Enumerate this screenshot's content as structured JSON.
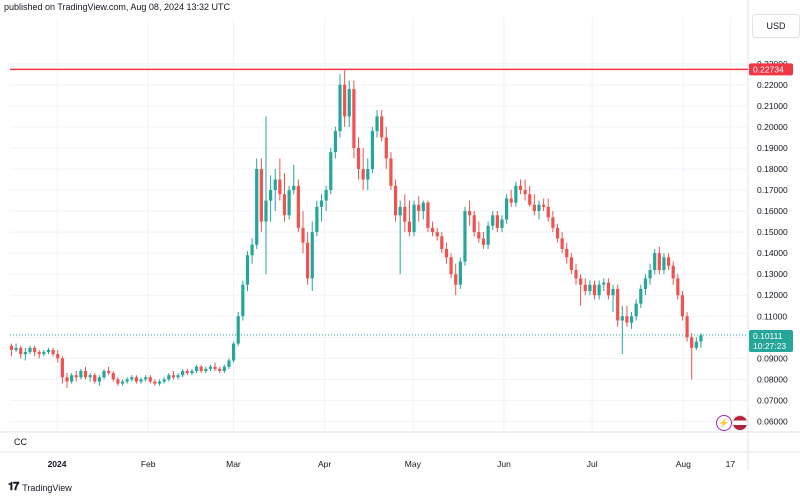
{
  "header": {
    "published": "published on TradingView.com, Aug 08, 2024 13:32 UTC"
  },
  "scale": {
    "currency": "USD"
  },
  "symbol_label": "CC",
  "footer": {
    "logo_text": "TradingView"
  },
  "icons": {
    "flash": "lightning-icon",
    "flag": "us-flag-icon"
  },
  "colors": {
    "up": "#26a69a",
    "down": "#ef5350",
    "line": "#f23645",
    "last_price_bg": "#26a69a"
  },
  "chart_data": {
    "type": "candlestick",
    "ylim": [
      0.055,
      0.2375
    ],
    "y_ticks": [
      "0.06000",
      "0.07000",
      "0.08000",
      "0.09000",
      "0.10000",
      "0.11000",
      "0.12000",
      "0.13000",
      "0.14000",
      "0.15000",
      "0.16000",
      "0.17000",
      "0.18000",
      "0.19000",
      "0.20000",
      "0.21000",
      "0.22000",
      "0.23000"
    ],
    "x_ticks": [
      {
        "label": "2024",
        "day": 0
      },
      {
        "label": "Feb",
        "day": 31
      },
      {
        "label": "Mar",
        "day": 60
      },
      {
        "label": "Apr",
        "day": 91
      },
      {
        "label": "May",
        "day": 121
      },
      {
        "label": "Jun",
        "day": 152
      },
      {
        "label": "Jul",
        "day": 182
      },
      {
        "label": "Aug",
        "day": 213
      },
      {
        "label": "17",
        "day": 229
      }
    ],
    "x_range_days": [
      -16,
      235
    ],
    "horizontal_line": {
      "value": 0.22734,
      "label": "0.22734"
    },
    "last_price": {
      "value": 0.10111,
      "label": "0.10111",
      "countdown": "10:27:23"
    },
    "ohlc": [
      [
        0.096,
        0.097,
        0.091,
        0.094
      ],
      [
        0.094,
        0.097,
        0.093,
        0.095
      ],
      [
        0.095,
        0.096,
        0.09,
        0.092
      ],
      [
        0.092,
        0.095,
        0.089,
        0.093
      ],
      [
        0.093,
        0.096,
        0.092,
        0.095
      ],
      [
        0.095,
        0.096,
        0.091,
        0.093
      ],
      [
        0.093,
        0.094,
        0.09,
        0.092
      ],
      [
        0.092,
        0.094,
        0.091,
        0.093
      ],
      [
        0.093,
        0.095,
        0.092,
        0.094
      ],
      [
        0.094,
        0.095,
        0.091,
        0.092
      ],
      [
        0.092,
        0.094,
        0.088,
        0.09
      ],
      [
        0.09,
        0.091,
        0.078,
        0.081
      ],
      [
        0.081,
        0.083,
        0.076,
        0.079
      ],
      [
        0.079,
        0.083,
        0.078,
        0.082
      ],
      [
        0.082,
        0.084,
        0.079,
        0.081
      ],
      [
        0.081,
        0.085,
        0.08,
        0.084
      ],
      [
        0.084,
        0.086,
        0.08,
        0.081
      ],
      [
        0.081,
        0.083,
        0.079,
        0.082
      ],
      [
        0.082,
        0.083,
        0.078,
        0.079
      ],
      [
        0.079,
        0.082,
        0.077,
        0.081
      ],
      [
        0.081,
        0.085,
        0.08,
        0.084
      ],
      [
        0.084,
        0.086,
        0.082,
        0.083
      ],
      [
        0.083,
        0.084,
        0.079,
        0.08
      ],
      [
        0.08,
        0.081,
        0.077,
        0.078
      ],
      [
        0.078,
        0.08,
        0.077,
        0.079
      ],
      [
        0.079,
        0.081,
        0.078,
        0.08
      ],
      [
        0.08,
        0.082,
        0.079,
        0.081
      ],
      [
        0.081,
        0.082,
        0.078,
        0.079
      ],
      [
        0.079,
        0.081,
        0.078,
        0.08
      ],
      [
        0.08,
        0.082,
        0.079,
        0.081
      ],
      [
        0.081,
        0.082,
        0.078,
        0.079
      ],
      [
        0.079,
        0.08,
        0.077,
        0.078
      ],
      [
        0.078,
        0.08,
        0.077,
        0.079
      ],
      [
        0.079,
        0.081,
        0.078,
        0.08
      ],
      [
        0.08,
        0.083,
        0.079,
        0.082
      ],
      [
        0.082,
        0.084,
        0.08,
        0.081
      ],
      [
        0.081,
        0.083,
        0.08,
        0.082
      ],
      [
        0.082,
        0.085,
        0.081,
        0.084
      ],
      [
        0.084,
        0.085,
        0.082,
        0.083
      ],
      [
        0.083,
        0.085,
        0.082,
        0.084
      ],
      [
        0.084,
        0.087,
        0.083,
        0.086
      ],
      [
        0.086,
        0.087,
        0.083,
        0.084
      ],
      [
        0.084,
        0.086,
        0.083,
        0.085
      ],
      [
        0.085,
        0.087,
        0.084,
        0.086
      ],
      [
        0.086,
        0.088,
        0.084,
        0.085
      ],
      [
        0.085,
        0.086,
        0.083,
        0.084
      ],
      [
        0.084,
        0.087,
        0.083,
        0.086
      ],
      [
        0.086,
        0.09,
        0.085,
        0.089
      ],
      [
        0.089,
        0.098,
        0.088,
        0.097
      ],
      [
        0.097,
        0.112,
        0.096,
        0.11
      ],
      [
        0.11,
        0.127,
        0.108,
        0.125
      ],
      [
        0.125,
        0.141,
        0.122,
        0.139
      ],
      [
        0.139,
        0.147,
        0.135,
        0.144
      ],
      [
        0.144,
        0.185,
        0.142,
        0.18
      ],
      [
        0.18,
        0.185,
        0.15,
        0.155
      ],
      [
        0.155,
        0.205,
        0.13,
        0.165
      ],
      [
        0.165,
        0.177,
        0.155,
        0.17
      ],
      [
        0.17,
        0.18,
        0.16,
        0.175
      ],
      [
        0.175,
        0.185,
        0.165,
        0.168
      ],
      [
        0.168,
        0.178,
        0.155,
        0.158
      ],
      [
        0.158,
        0.172,
        0.156,
        0.17
      ],
      [
        0.17,
        0.182,
        0.168,
        0.172
      ],
      [
        0.172,
        0.175,
        0.15,
        0.152
      ],
      [
        0.152,
        0.16,
        0.14,
        0.145
      ],
      [
        0.145,
        0.15,
        0.125,
        0.128
      ],
      [
        0.128,
        0.155,
        0.122,
        0.15
      ],
      [
        0.15,
        0.165,
        0.148,
        0.162
      ],
      [
        0.162,
        0.168,
        0.155,
        0.165
      ],
      [
        0.165,
        0.172,
        0.16,
        0.17
      ],
      [
        0.17,
        0.19,
        0.168,
        0.188
      ],
      [
        0.188,
        0.2,
        0.185,
        0.198
      ],
      [
        0.198,
        0.225,
        0.195,
        0.22
      ],
      [
        0.22,
        0.227,
        0.2,
        0.205
      ],
      [
        0.205,
        0.222,
        0.2,
        0.218
      ],
      [
        0.218,
        0.222,
        0.185,
        0.19
      ],
      [
        0.19,
        0.195,
        0.175,
        0.18
      ],
      [
        0.18,
        0.19,
        0.17,
        0.175
      ],
      [
        0.175,
        0.185,
        0.17,
        0.18
      ],
      [
        0.18,
        0.2,
        0.178,
        0.198
      ],
      [
        0.198,
        0.208,
        0.195,
        0.205
      ],
      [
        0.205,
        0.208,
        0.193,
        0.195
      ],
      [
        0.195,
        0.2,
        0.18,
        0.185
      ],
      [
        0.185,
        0.188,
        0.17,
        0.172
      ],
      [
        0.172,
        0.175,
        0.155,
        0.158
      ],
      [
        0.158,
        0.165,
        0.13,
        0.162
      ],
      [
        0.162,
        0.168,
        0.15,
        0.155
      ],
      [
        0.155,
        0.165,
        0.148,
        0.15
      ],
      [
        0.15,
        0.165,
        0.148,
        0.163
      ],
      [
        0.163,
        0.167,
        0.155,
        0.16
      ],
      [
        0.16,
        0.165,
        0.156,
        0.164
      ],
      [
        0.164,
        0.165,
        0.15,
        0.152
      ],
      [
        0.152,
        0.155,
        0.148,
        0.15
      ],
      [
        0.15,
        0.152,
        0.146,
        0.148
      ],
      [
        0.148,
        0.15,
        0.14,
        0.142
      ],
      [
        0.142,
        0.145,
        0.135,
        0.138
      ],
      [
        0.138,
        0.14,
        0.128,
        0.13
      ],
      [
        0.13,
        0.135,
        0.12,
        0.125
      ],
      [
        0.125,
        0.138,
        0.123,
        0.136
      ],
      [
        0.136,
        0.162,
        0.134,
        0.16
      ],
      [
        0.16,
        0.165,
        0.153,
        0.158
      ],
      [
        0.158,
        0.16,
        0.148,
        0.15
      ],
      [
        0.15,
        0.155,
        0.145,
        0.147
      ],
      [
        0.147,
        0.15,
        0.142,
        0.144
      ],
      [
        0.144,
        0.155,
        0.142,
        0.153
      ],
      [
        0.153,
        0.16,
        0.151,
        0.158
      ],
      [
        0.158,
        0.16,
        0.15,
        0.152
      ],
      [
        0.152,
        0.158,
        0.15,
        0.156
      ],
      [
        0.156,
        0.168,
        0.154,
        0.166
      ],
      [
        0.166,
        0.17,
        0.162,
        0.164
      ],
      [
        0.164,
        0.174,
        0.162,
        0.172
      ],
      [
        0.172,
        0.175,
        0.168,
        0.17
      ],
      [
        0.17,
        0.175,
        0.165,
        0.168
      ],
      [
        0.168,
        0.172,
        0.162,
        0.163
      ],
      [
        0.163,
        0.168,
        0.158,
        0.16
      ],
      [
        0.16,
        0.165,
        0.156,
        0.163
      ],
      [
        0.163,
        0.166,
        0.16,
        0.162
      ],
      [
        0.162,
        0.166,
        0.155,
        0.157
      ],
      [
        0.157,
        0.16,
        0.15,
        0.152
      ],
      [
        0.152,
        0.154,
        0.145,
        0.147
      ],
      [
        0.147,
        0.15,
        0.14,
        0.142
      ],
      [
        0.142,
        0.145,
        0.135,
        0.138
      ],
      [
        0.138,
        0.14,
        0.13,
        0.132
      ],
      [
        0.132,
        0.135,
        0.125,
        0.128
      ],
      [
        0.128,
        0.13,
        0.115,
        0.125
      ],
      [
        0.125,
        0.128,
        0.12,
        0.122
      ],
      [
        0.122,
        0.127,
        0.12,
        0.125
      ],
      [
        0.125,
        0.127,
        0.118,
        0.12
      ],
      [
        0.12,
        0.127,
        0.118,
        0.125
      ],
      [
        0.125,
        0.128,
        0.122,
        0.126
      ],
      [
        0.126,
        0.128,
        0.118,
        0.12
      ],
      [
        0.12,
        0.125,
        0.112,
        0.123
      ],
      [
        0.123,
        0.125,
        0.105,
        0.108
      ],
      [
        0.108,
        0.115,
        0.092,
        0.11
      ],
      [
        0.11,
        0.115,
        0.105,
        0.107
      ],
      [
        0.107,
        0.112,
        0.104,
        0.11
      ],
      [
        0.11,
        0.118,
        0.108,
        0.116
      ],
      [
        0.116,
        0.125,
        0.114,
        0.123
      ],
      [
        0.123,
        0.13,
        0.12,
        0.128
      ],
      [
        0.128,
        0.135,
        0.125,
        0.132
      ],
      [
        0.132,
        0.142,
        0.13,
        0.14
      ],
      [
        0.14,
        0.143,
        0.13,
        0.132
      ],
      [
        0.132,
        0.14,
        0.13,
        0.138
      ],
      [
        0.138,
        0.14,
        0.132,
        0.134
      ],
      [
        0.134,
        0.136,
        0.125,
        0.128
      ],
      [
        0.128,
        0.13,
        0.118,
        0.12
      ],
      [
        0.12,
        0.122,
        0.108,
        0.11
      ],
      [
        0.11,
        0.112,
        0.098,
        0.1
      ],
      [
        0.1,
        0.102,
        0.08,
        0.095
      ],
      [
        0.095,
        0.1,
        0.094,
        0.098
      ],
      [
        0.098,
        0.102,
        0.095,
        0.101
      ]
    ]
  }
}
